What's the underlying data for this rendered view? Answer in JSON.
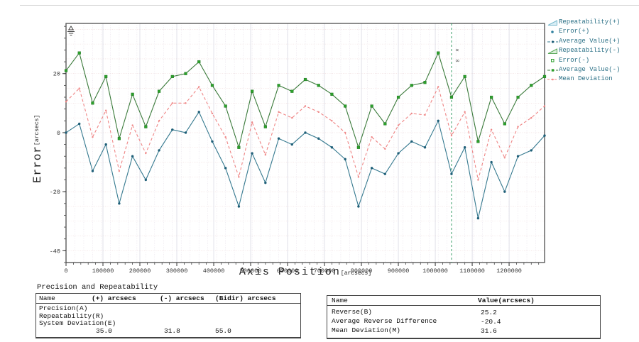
{
  "chart_data": {
    "type": "line",
    "xlabel": "Axis Position",
    "xlabel_unit": "[arcsecs]",
    "ylabel": "Error",
    "ylabel_unit": "[arcsecs]",
    "xlim": [
      0,
      1296000
    ],
    "ylim": [
      -44,
      37
    ],
    "x_ticks": [
      0,
      100000,
      200000,
      300000,
      400000,
      500000,
      600000,
      700000,
      800000,
      900000,
      1000000,
      1100000,
      1200000
    ],
    "y_ticks": [
      20,
      0,
      -20,
      -40
    ],
    "x_minor_step": 20000,
    "y_minor_step": 4,
    "x_grid_step": 24000,
    "y_grid_step": 5,
    "grid": true,
    "legend_position": "right",
    "x": [
      0,
      36000,
      72000,
      108000,
      144000,
      180000,
      216000,
      252000,
      288000,
      324000,
      360000,
      396000,
      432000,
      468000,
      504000,
      540000,
      576000,
      612000,
      648000,
      684000,
      720000,
      756000,
      792000,
      828000,
      864000,
      900000,
      936000,
      972000,
      1008000,
      1044000,
      1080000,
      1116000,
      1152000,
      1188000,
      1224000,
      1260000,
      1296000
    ],
    "series": [
      {
        "name": "Mean Deviation",
        "color": "#ef8585",
        "marker": "dot",
        "line": "dashed",
        "values": [
          10.5,
          15,
          -1.5,
          7.5,
          -13,
          2.5,
          -7,
          4,
          10,
          10,
          15.5,
          6.5,
          -1.5,
          -15,
          3.5,
          -7.5,
          7,
          5,
          9,
          7,
          4,
          0,
          -15,
          -1.5,
          -5.5,
          2.5,
          6.5,
          6,
          15.5,
          -1,
          7,
          -16,
          1,
          -8.5,
          2,
          5,
          9
        ]
      },
      {
        "name": "Average Value(-)",
        "color": "#3a7a3a",
        "marker": "square",
        "marker_color": "#2ca02c",
        "line": "solid",
        "values": [
          21,
          27,
          10,
          19,
          -2,
          13,
          2,
          14,
          19,
          20,
          24,
          16,
          9,
          -5,
          14,
          2,
          16,
          14,
          18,
          16,
          13,
          9,
          -5,
          9,
          3,
          12,
          16,
          17,
          27,
          12,
          19,
          -3,
          12,
          3,
          12,
          16,
          19
        ]
      },
      {
        "name": "Average Value(+)",
        "color": "#35798f",
        "marker": "dot",
        "marker_color": "#1f5f78",
        "line": "solid",
        "values": [
          0,
          3,
          -13,
          -4,
          -24,
          -8,
          -16,
          -6,
          1,
          0,
          7,
          -3,
          -12,
          -25,
          -7,
          -17,
          -2,
          -4,
          0,
          -2,
          -5,
          -9,
          -25,
          -12,
          -14,
          -7,
          -3,
          -5,
          4,
          -14,
          -5,
          -29,
          -10,
          -20,
          -8,
          -6,
          -1
        ]
      }
    ],
    "marker_line": {
      "x": 1044000,
      "color": "#3aa06a",
      "labels": [
        "∝",
        "∞"
      ]
    },
    "legend": [
      {
        "label": "Repeatability(+)",
        "glyph": "triangle-cyan"
      },
      {
        "label": "Error(+)",
        "glyph": "dot-blue"
      },
      {
        "label": "Average Value(+)",
        "glyph": "dashline-blue"
      },
      {
        "label": "Repeatability(-)",
        "glyph": "triangle-green"
      },
      {
        "label": "Error(-)",
        "glyph": "square-green"
      },
      {
        "label": "Average Value(-)",
        "glyph": "dashline-green"
      },
      {
        "label": "Mean Deviation",
        "glyph": "dashline-red"
      }
    ]
  },
  "tables": {
    "precision": {
      "title": "Precision and Repeatability",
      "headers": [
        "Name",
        "(+) arcsecs",
        "(-) arcsecs",
        "(Bidir) arcsecs"
      ],
      "rows": [
        {
          "name": "Precision(A)"
        },
        {
          "name": "Repeatability(R)"
        },
        {
          "name": "System Deviation(E)"
        }
      ],
      "values": {
        "plus": "35.0",
        "minus": "31.8",
        "bidir": "55.0"
      }
    },
    "summary": {
      "headers": [
        "Name",
        "Value(arcsecs)"
      ],
      "rows": [
        {
          "name": "Reverse(B)",
          "value": "25.2"
        },
        {
          "name": "Average Reverse Difference",
          "value": "-20.4"
        },
        {
          "name": "Mean Deviation(M)",
          "value": "31.6"
        }
      ]
    }
  }
}
